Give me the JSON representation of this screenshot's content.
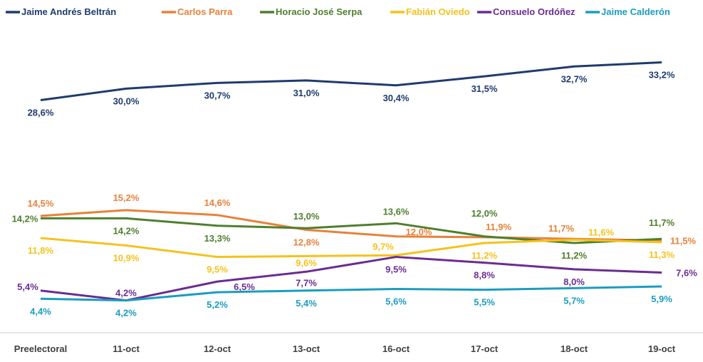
{
  "chart_data": {
    "type": "line",
    "categories": [
      "Preelectoral",
      "11-oct",
      "12-oct",
      "13-oct",
      "16-oct",
      "17-oct",
      "18-oct",
      "19-oct"
    ],
    "legend_position": "top",
    "grid": false,
    "value_suffix": "%",
    "decimal_separator": ",",
    "series": [
      {
        "name": "Jaime Andrés Beltrán",
        "color": "#1f3b6e",
        "values": [
          28.6,
          30.0,
          30.7,
          31.0,
          30.4,
          31.5,
          32.7,
          33.2
        ]
      },
      {
        "name": "Carlos Parra",
        "color": "#e8813a",
        "values": [
          14.5,
          15.2,
          14.6,
          12.8,
          12.0,
          11.9,
          11.7,
          11.5
        ]
      },
      {
        "name": "Horacio José Serpa",
        "color": "#4f7f2e",
        "values": [
          14.2,
          14.2,
          13.3,
          13.0,
          13.6,
          12.0,
          11.2,
          11.7
        ]
      },
      {
        "name": "Fabián Oviedo",
        "color": "#f5c21b",
        "values": [
          11.8,
          10.9,
          9.5,
          9.6,
          9.7,
          11.2,
          11.6,
          11.3
        ]
      },
      {
        "name": "Consuelo Ordóñez",
        "color": "#6a2c91",
        "values": [
          5.4,
          4.2,
          6.5,
          7.7,
          9.5,
          8.8,
          8.0,
          7.6
        ]
      },
      {
        "name": "Jaime Calderón",
        "color": "#1b9dbf",
        "values": [
          4.4,
          4.2,
          5.2,
          5.4,
          5.6,
          5.5,
          5.7,
          5.9
        ]
      }
    ]
  }
}
